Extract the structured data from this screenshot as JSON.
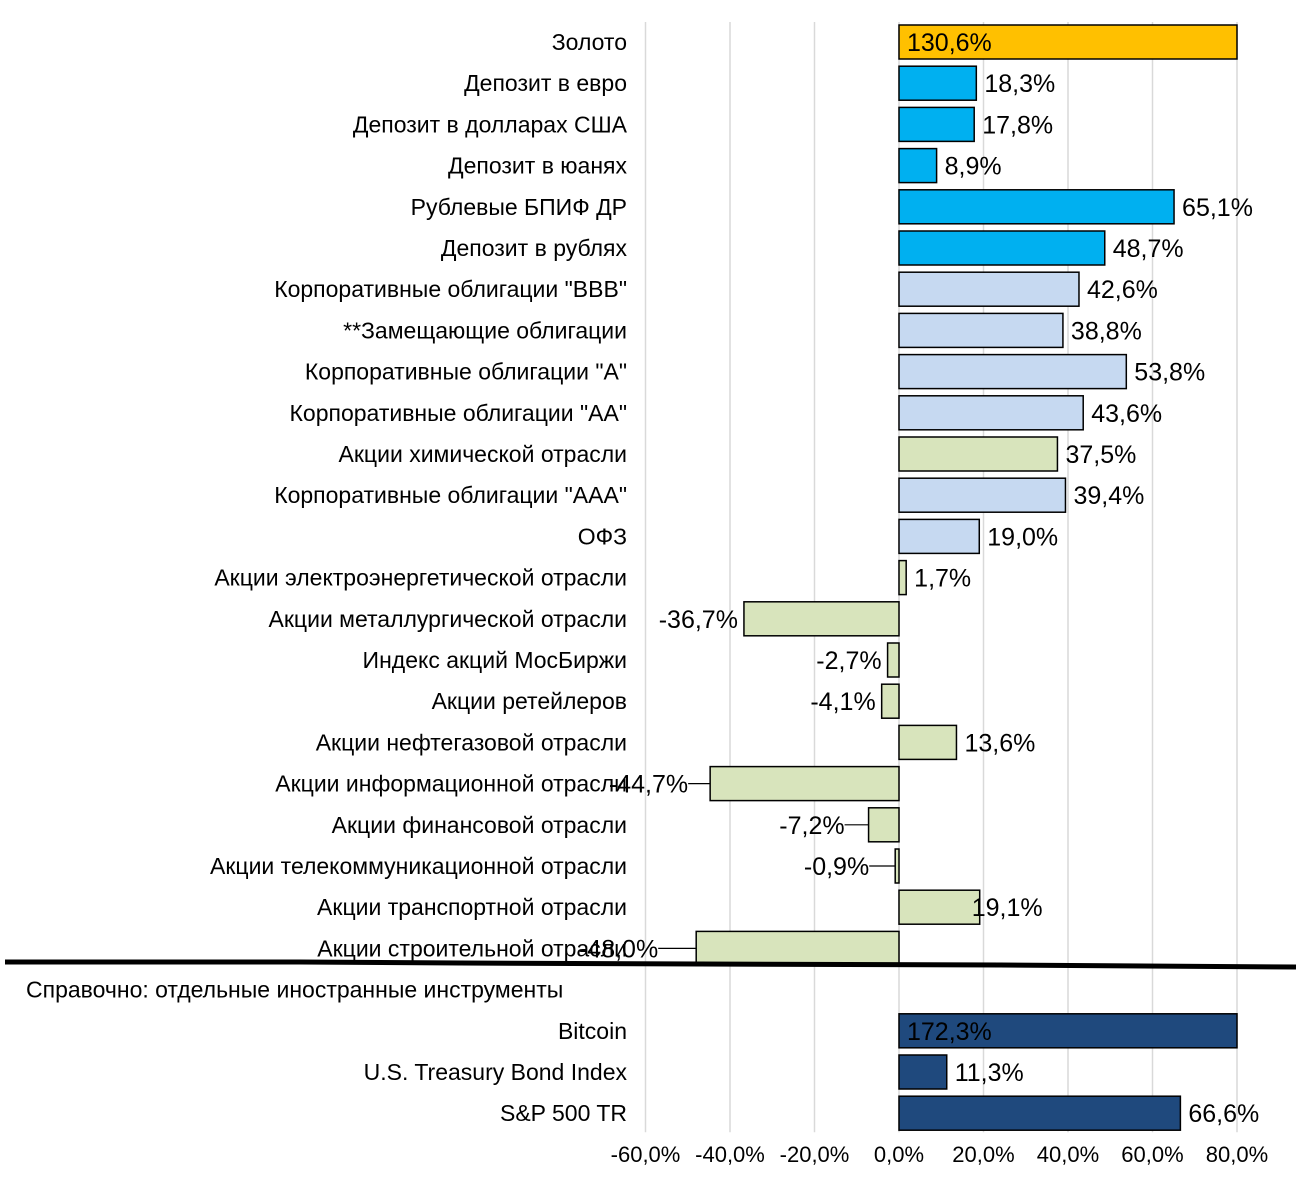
{
  "chart_data": {
    "type": "bar",
    "orientation": "horizontal",
    "title": "",
    "xlabel": "",
    "ylabel": "",
    "xlim": [
      -60,
      80
    ],
    "x_ticks": [
      "-60,0%",
      "-40,0%",
      "-20,0%",
      "0,0%",
      "20,0%",
      "40,0%",
      "60,0%",
      "80,0%"
    ],
    "x_tick_values": [
      -60,
      -40,
      -20,
      0,
      20,
      40,
      60,
      80
    ],
    "grid": "vertical",
    "legend": "none",
    "clip_note": "bars exceeding 80% are truncated at the axis limit",
    "section_separator_label": "Справочно: отдельные иностранные инструменты",
    "colors": {
      "gold": "#FFC000",
      "deposit": "#00B0F0",
      "bonds": "#C6D9F1",
      "equities": "#D8E4BC",
      "foreign": "#1F497D"
    },
    "categories": [
      "Золото",
      "Депозит в евро",
      "Депозит в долларах США",
      "Депозит в юанях",
      "Рублевые БПИФ ДР",
      "Депозит в рублях",
      "Корпоративные облигации \"BBB\"",
      "**Замещающие облигации",
      "Корпоративные облигации \"A\"",
      "Корпоративные облигации \"AA\"",
      "Акции химической отрасли",
      "Корпоративные облигации \"AAA\"",
      "ОФЗ",
      "Акции электроэнергетической отрасли",
      "Акции металлургической отрасли",
      "Индекс акций МосБиржи",
      "Акции ретейлеров",
      "Акции нефтегазовой отрасли",
      "Акции информационной отрасли",
      "Акции финансовой отрасли",
      "Акции телекоммуникационной отрасли",
      "Акции транспортной отрасли",
      "Акции строительной отрасли",
      "Справочно: отдельные иностранные инструменты",
      "Bitcoin",
      "U.S. Treasury Bond Index",
      "S&P 500 TR"
    ],
    "values": [
      130.6,
      18.3,
      17.8,
      8.9,
      65.1,
      48.7,
      42.6,
      38.8,
      53.8,
      43.6,
      37.5,
      39.4,
      19.0,
      1.7,
      -36.7,
      -2.7,
      -4.1,
      13.6,
      -44.7,
      -7.2,
      -0.9,
      19.1,
      -48.0,
      null,
      172.3,
      11.3,
      66.6
    ],
    "labels": [
      "130,6%",
      "18,3%",
      "17,8%",
      "8,9%",
      "65,1%",
      "48,7%",
      "42,6%",
      "38,8%",
      "53,8%",
      "43,6%",
      "37,5%",
      "39,4%",
      "19,0%",
      "1,7%",
      "-36,7%",
      "-2,7%",
      "-4,1%",
      "13,6%",
      "-44,7%",
      "-7,2%",
      "-0,9%",
      "19,1%",
      "-48,0%",
      "",
      "172,3%",
      "11,3%",
      "66,6%"
    ],
    "groups": [
      "gold",
      "deposit",
      "deposit",
      "deposit",
      "deposit",
      "deposit",
      "bonds",
      "bonds",
      "bonds",
      "bonds",
      "equities",
      "bonds",
      "bonds",
      "equities",
      "equities",
      "equities",
      "equities",
      "equities",
      "equities",
      "equities",
      "equities",
      "equities",
      "equities",
      "none",
      "foreign",
      "foreign",
      "foreign"
    ]
  }
}
